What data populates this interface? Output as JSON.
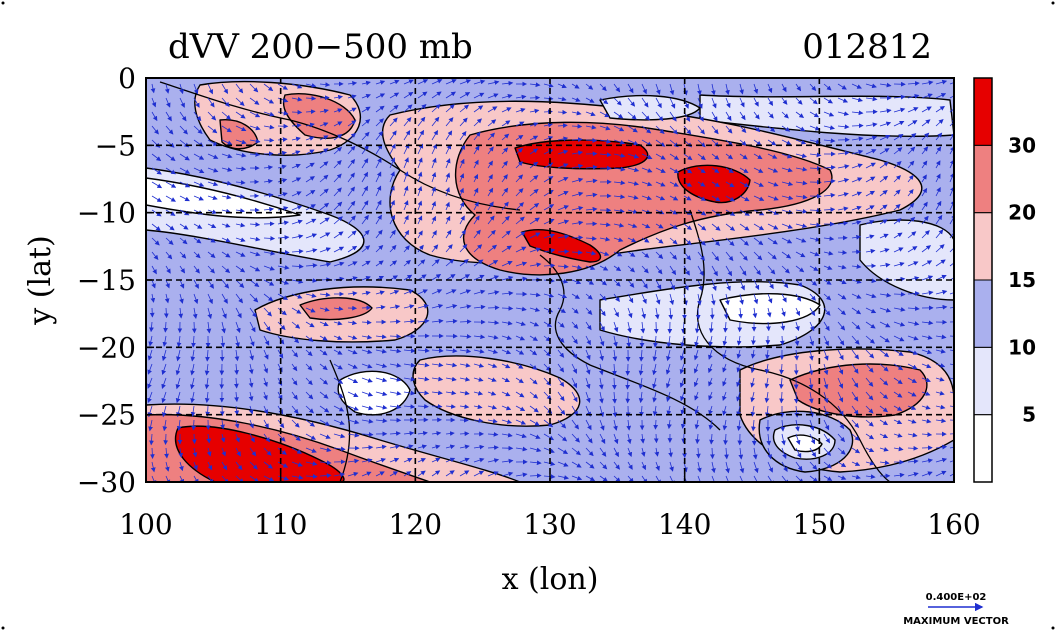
{
  "chart_data": {
    "type": "heatmap",
    "title": "dVV 200−500 mb",
    "date_code": "012812",
    "xlabel": "x (lon)",
    "ylabel": "y (lat)",
    "xlim": [
      100,
      160
    ],
    "ylim": [
      -30,
      0
    ],
    "x_ticks": [
      100,
      110,
      120,
      130,
      140,
      150,
      160
    ],
    "x_tick_labels": [
      "100",
      "110",
      "120",
      "130",
      "140",
      "150",
      "160"
    ],
    "y_ticks": [
      0,
      -5,
      -10,
      -15,
      -20,
      -25,
      -30
    ],
    "y_tick_labels": [
      "0",
      "−5",
      "−10",
      "−15",
      "−20",
      "−25",
      "−30"
    ],
    "grid": true,
    "colorbar": {
      "levels": [
        0,
        5,
        10,
        15,
        20,
        30,
        35
      ],
      "tick_values": [
        5,
        10,
        15,
        20,
        30
      ],
      "tick_labels": [
        "5",
        "10",
        "15",
        "20",
        "30"
      ],
      "colors": [
        "#ffffff",
        "#e4e6fb",
        "#aab0ee",
        "#f8c8c8",
        "#ee8080",
        "#e60000"
      ]
    },
    "vector_legend": {
      "value_label": "0.400E+02",
      "caption": "MAXIMUM VECTOR"
    },
    "regions": [
      {
        "label": "30+",
        "level": 30,
        "center": [
          131,
          -6.3
        ]
      },
      {
        "label": "30+",
        "level": 30,
        "center": [
          142.5,
          -7.5
        ]
      },
      {
        "label": "30+",
        "level": 30,
        "center": [
          133,
          -12.8
        ]
      },
      {
        "label": "30+",
        "level": 30,
        "center": [
          109,
          -28
        ]
      },
      {
        "label": "20-30",
        "level": 20,
        "center": [
          133,
          -9
        ]
      },
      {
        "label": "20-30",
        "level": 20,
        "center": [
          113,
          -3
        ]
      },
      {
        "label": "20-30",
        "level": 20,
        "center": [
          153,
          -24
        ]
      },
      {
        "label": "15-20",
        "level": 15,
        "center": [
          113,
          -17
        ]
      },
      {
        "label": "5-10",
        "level": 5,
        "center": [
          106,
          -11
        ]
      },
      {
        "label": "0-5",
        "level": 0,
        "center": [
          151,
          -26
        ]
      }
    ]
  }
}
